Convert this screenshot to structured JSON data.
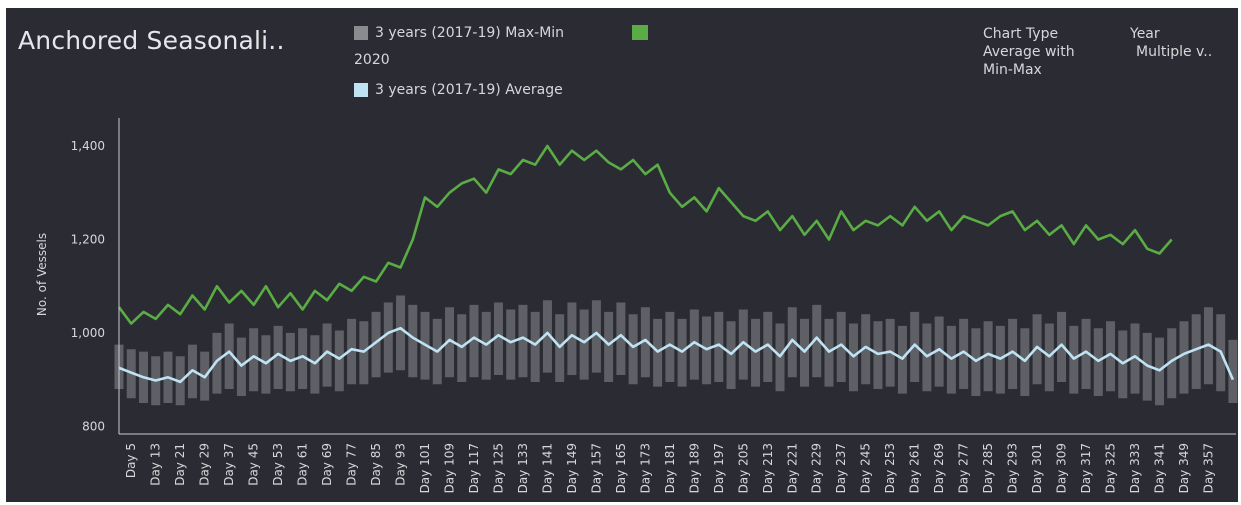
{
  "title": "Anchored Seasonali..",
  "legend": [
    {
      "label": "3 years (2017-19) Max-Min",
      "color": "#8a8a8f"
    },
    {
      "label": "2020",
      "color": "#5aac44"
    },
    {
      "label": "3 years (2017-19) Average",
      "color": "#bfe3f2"
    }
  ],
  "controls": {
    "chart_type_label": "Chart Type",
    "chart_type_value_line1": "Average with",
    "chart_type_value_line2": "Min-Max",
    "year_label": "Year",
    "year_value": "Multiple v.."
  },
  "colors": {
    "background": "#2b2c33",
    "series_2020": "#5aac44",
    "average": "#bfe3f2",
    "range": "#8a8a8f"
  },
  "chart_data": {
    "type": "line",
    "title": "Anchored Seasonali..",
    "ylabel": "No. of Vessels",
    "xlabel": "",
    "ylim": [
      790,
      1460
    ],
    "xlim": [
      1,
      366
    ],
    "yticks": [
      800,
      1000,
      1200,
      1400
    ],
    "ytick_labels": [
      "800",
      "1,000",
      "1,200",
      "1,400"
    ],
    "xtick_days": [
      5,
      13,
      21,
      29,
      37,
      45,
      53,
      61,
      69,
      77,
      85,
      93,
      101,
      109,
      117,
      125,
      133,
      141,
      149,
      157,
      165,
      173,
      181,
      189,
      197,
      205,
      213,
      221,
      229,
      237,
      245,
      253,
      261,
      269,
      277,
      285,
      293,
      301,
      309,
      317,
      325,
      333,
      341,
      349,
      357
    ],
    "xtick_labels": [
      "Day 5",
      "Day 13",
      "Day 21",
      "Day 29",
      "Day 37",
      "Day 45",
      "Day 53",
      "Day 61",
      "Day 69",
      "Day 77",
      "Day 85",
      "Day 93",
      "Day 101",
      "Day 109",
      "Day 117",
      "Day 125",
      "Day 133",
      "Day 141",
      "Day 149",
      "Day 157",
      "Day 165",
      "Day 173",
      "Day 181",
      "Day 189",
      "Day 197",
      "Day 205",
      "Day 213",
      "Day 221",
      "Day 229",
      "Day 237",
      "Day 245",
      "Day 253",
      "Day 261",
      "Day 269",
      "Day 277",
      "Day 285",
      "Day 293",
      "Day 301",
      "Day 309",
      "Day 317",
      "Day 325",
      "Day 333",
      "Day 341",
      "Day 349",
      "Day 357"
    ],
    "grid": false,
    "legend_position": "top",
    "series": [
      {
        "name": "2020",
        "x": [
          1,
          5,
          9,
          13,
          17,
          21,
          25,
          29,
          33,
          37,
          41,
          45,
          49,
          53,
          57,
          61,
          65,
          69,
          73,
          77,
          81,
          85,
          89,
          93,
          97,
          101,
          105,
          109,
          113,
          117,
          121,
          125,
          129,
          133,
          137,
          141,
          145,
          149,
          153,
          157,
          161,
          165,
          169,
          173,
          177,
          181,
          185,
          189,
          193,
          197,
          201,
          205,
          209,
          213,
          217,
          221,
          225,
          229,
          233,
          237,
          241,
          245,
          249,
          253,
          257,
          261,
          265,
          269,
          273,
          277,
          281,
          285,
          289,
          293,
          297,
          301,
          305,
          309,
          313,
          317,
          321,
          325,
          329,
          333,
          337,
          341,
          345
        ],
        "values": [
          1055,
          1020,
          1045,
          1030,
          1060,
          1040,
          1080,
          1050,
          1100,
          1065,
          1090,
          1060,
          1100,
          1055,
          1085,
          1050,
          1090,
          1070,
          1105,
          1090,
          1120,
          1110,
          1150,
          1140,
          1200,
          1290,
          1270,
          1300,
          1320,
          1330,
          1300,
          1350,
          1340,
          1370,
          1360,
          1400,
          1360,
          1390,
          1370,
          1390,
          1365,
          1350,
          1370,
          1340,
          1360,
          1300,
          1270,
          1290,
          1260,
          1310,
          1280,
          1250,
          1240,
          1260,
          1220,
          1250,
          1210,
          1240,
          1200,
          1260,
          1220,
          1240,
          1230,
          1250,
          1230,
          1270,
          1240,
          1260,
          1220,
          1250,
          1240,
          1230,
          1250,
          1260,
          1220,
          1240,
          1210,
          1230,
          1190,
          1230,
          1200,
          1210,
          1190,
          1220,
          1180,
          1170,
          1200
        ]
      },
      {
        "name": "3 years (2017-19) Average",
        "x": [
          1,
          5,
          9,
          13,
          17,
          21,
          25,
          29,
          33,
          37,
          41,
          45,
          49,
          53,
          57,
          61,
          65,
          69,
          73,
          77,
          81,
          85,
          89,
          93,
          97,
          101,
          105,
          109,
          113,
          117,
          121,
          125,
          129,
          133,
          137,
          141,
          145,
          149,
          153,
          157,
          161,
          165,
          169,
          173,
          177,
          181,
          185,
          189,
          193,
          197,
          201,
          205,
          209,
          213,
          217,
          221,
          225,
          229,
          233,
          237,
          241,
          245,
          249,
          253,
          257,
          261,
          265,
          269,
          273,
          277,
          281,
          285,
          289,
          293,
          297,
          301,
          305,
          309,
          313,
          317,
          321,
          325,
          329,
          333,
          337,
          341,
          345,
          349,
          353,
          357,
          361,
          365
        ],
        "values": [
          925,
          915,
          905,
          898,
          905,
          895,
          920,
          905,
          940,
          960,
          930,
          950,
          935,
          955,
          940,
          950,
          935,
          960,
          945,
          965,
          960,
          980,
          1000,
          1010,
          990,
          975,
          960,
          985,
          970,
          990,
          975,
          995,
          980,
          990,
          975,
          1000,
          970,
          995,
          980,
          1000,
          975,
          995,
          970,
          985,
          960,
          975,
          960,
          980,
          965,
          975,
          955,
          980,
          960,
          975,
          950,
          985,
          960,
          990,
          960,
          975,
          950,
          970,
          955,
          960,
          945,
          975,
          950,
          965,
          945,
          960,
          940,
          955,
          945,
          960,
          940,
          970,
          950,
          975,
          945,
          960,
          940,
          955,
          935,
          950,
          930,
          920,
          940,
          955,
          965,
          975,
          960,
          900
        ]
      },
      {
        "name": "3 years (2017-19) Max-Min",
        "x": [
          1,
          5,
          9,
          13,
          17,
          21,
          25,
          29,
          33,
          37,
          41,
          45,
          49,
          53,
          57,
          61,
          65,
          69,
          73,
          77,
          81,
          85,
          89,
          93,
          97,
          101,
          105,
          109,
          113,
          117,
          121,
          125,
          129,
          133,
          137,
          141,
          145,
          149,
          153,
          157,
          161,
          165,
          169,
          173,
          177,
          181,
          185,
          189,
          193,
          197,
          201,
          205,
          209,
          213,
          217,
          221,
          225,
          229,
          233,
          237,
          241,
          245,
          249,
          253,
          257,
          261,
          265,
          269,
          273,
          277,
          281,
          285,
          289,
          293,
          297,
          301,
          305,
          309,
          313,
          317,
          321,
          325,
          329,
          333,
          337,
          341,
          345,
          349,
          353,
          357,
          361,
          365
        ],
        "min": [
          880,
          860,
          850,
          845,
          850,
          845,
          860,
          855,
          870,
          880,
          865,
          875,
          870,
          880,
          875,
          880,
          870,
          885,
          875,
          890,
          890,
          905,
          915,
          920,
          905,
          900,
          890,
          905,
          895,
          905,
          900,
          910,
          900,
          905,
          895,
          915,
          895,
          910,
          900,
          915,
          895,
          910,
          890,
          905,
          885,
          895,
          885,
          900,
          890,
          895,
          880,
          900,
          885,
          895,
          875,
          905,
          885,
          905,
          885,
          895,
          875,
          890,
          880,
          885,
          870,
          895,
          875,
          885,
          870,
          880,
          865,
          875,
          870,
          880,
          865,
          890,
          875,
          895,
          870,
          880,
          865,
          875,
          860,
          870,
          855,
          845,
          860,
          870,
          880,
          890,
          875,
          850
        ],
        "max": [
          975,
          965,
          960,
          950,
          960,
          950,
          975,
          960,
          1000,
          1020,
          990,
          1010,
          995,
          1015,
          1000,
          1010,
          995,
          1020,
          1005,
          1030,
          1025,
          1045,
          1065,
          1080,
          1060,
          1045,
          1030,
          1055,
          1040,
          1060,
          1045,
          1065,
          1050,
          1060,
          1045,
          1070,
          1040,
          1065,
          1050,
          1070,
          1045,
          1065,
          1040,
          1055,
          1030,
          1045,
          1030,
          1050,
          1035,
          1045,
          1025,
          1050,
          1030,
          1045,
          1020,
          1055,
          1030,
          1060,
          1030,
          1045,
          1020,
          1040,
          1025,
          1030,
          1015,
          1045,
          1020,
          1035,
          1015,
          1030,
          1010,
          1025,
          1015,
          1030,
          1010,
          1040,
          1020,
          1045,
          1015,
          1030,
          1010,
          1025,
          1005,
          1020,
          1000,
          990,
          1010,
          1025,
          1040,
          1055,
          1040,
          985
        ]
      }
    ]
  }
}
